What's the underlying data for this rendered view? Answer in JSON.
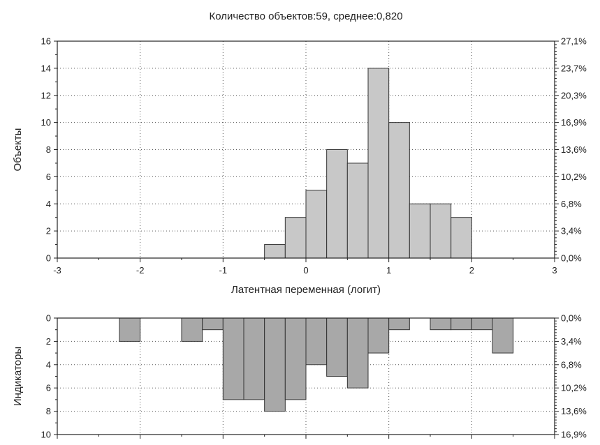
{
  "chart_data": [
    {
      "type": "bar",
      "title": "Количество объектов:59, среднее:0,820",
      "xlabel": "Латентная переменная (логит)",
      "ylabel": "Объекты",
      "xlim": [
        -3,
        3
      ],
      "ylim": [
        0,
        16
      ],
      "x_ticks": [
        "-3",
        "-2",
        "-1",
        "0",
        "1",
        "2",
        "3"
      ],
      "y_ticks": [
        "0",
        "2",
        "4",
        "6",
        "8",
        "10",
        "12",
        "14",
        "16"
      ],
      "y2_ticks": [
        "0,0%",
        "3,4%",
        "6,8%",
        "10,2%",
        "13,6%",
        "16,9%",
        "20,3%",
        "23,7%",
        "27,1%"
      ],
      "bin_width": 0.25,
      "bins": [
        {
          "x0": -0.5,
          "value": 1
        },
        {
          "x0": -0.25,
          "value": 3
        },
        {
          "x0": 0.0,
          "value": 5
        },
        {
          "x0": 0.25,
          "value": 8
        },
        {
          "x0": 0.5,
          "value": 7
        },
        {
          "x0": 0.75,
          "value": 14
        },
        {
          "x0": 1.0,
          "value": 10
        },
        {
          "x0": 1.25,
          "value": 4
        },
        {
          "x0": 1.5,
          "value": 4
        },
        {
          "x0": 1.75,
          "value": 3
        }
      ],
      "bar_color": "#c8c8c8",
      "grid": true
    },
    {
      "type": "bar",
      "orientation": "inverted",
      "ylabel": "Индикаторы",
      "xlim": [
        -3,
        3
      ],
      "ylim": [
        0,
        10
      ],
      "y_ticks": [
        "0",
        "2",
        "4",
        "6",
        "8",
        "10"
      ],
      "y2_ticks": [
        "0,0%",
        "3,4%",
        "6,8%",
        "10,2%",
        "13,6%",
        "16,9%"
      ],
      "bin_width": 0.25,
      "bins": [
        {
          "x0": -2.25,
          "value": 2
        },
        {
          "x0": -1.5,
          "value": 2
        },
        {
          "x0": -1.25,
          "value": 1
        },
        {
          "x0": -1.0,
          "value": 7
        },
        {
          "x0": -0.75,
          "value": 7
        },
        {
          "x0": -0.5,
          "value": 8
        },
        {
          "x0": -0.25,
          "value": 7
        },
        {
          "x0": 0.0,
          "value": 4
        },
        {
          "x0": 0.25,
          "value": 5
        },
        {
          "x0": 0.5,
          "value": 6
        },
        {
          "x0": 0.75,
          "value": 3
        },
        {
          "x0": 1.0,
          "value": 1
        },
        {
          "x0": 1.5,
          "value": 1
        },
        {
          "x0": 1.75,
          "value": 1
        },
        {
          "x0": 2.0,
          "value": 1
        },
        {
          "x0": 2.25,
          "value": 3
        }
      ],
      "bar_color": "#a8a8a8",
      "grid": true
    }
  ]
}
